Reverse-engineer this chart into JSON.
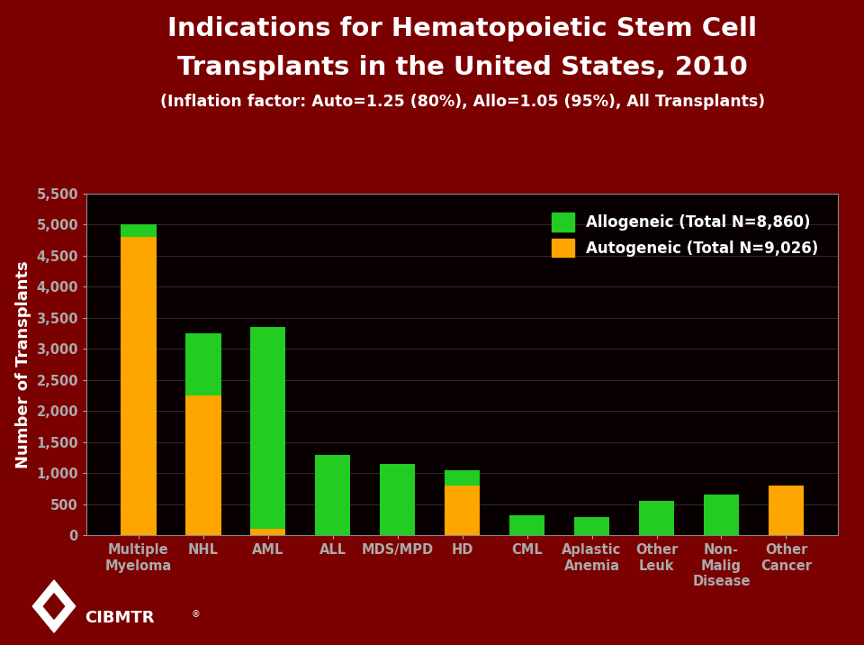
{
  "title_line1": "Indications for Hematopoietic Stem Cell",
  "title_line2": "Transplants in the United States, 2010",
  "subtitle": "(Inflation factor: Auto=1.25 (80%), Allo=1.05 (95%), All Transplants)",
  "ylabel": "Number of Transplants",
  "categories": [
    "Multiple\nMyeloma",
    "NHL",
    "AML",
    "ALL",
    "MDS/MPD",
    "HD",
    "CML",
    "Aplastic\nAnemia",
    "Other\nLeuk",
    "Non-\nMalig\nDisease",
    "Other\nCancer"
  ],
  "allo_values": [
    200,
    1000,
    3250,
    1300,
    1150,
    250,
    325,
    300,
    550,
    650,
    0
  ],
  "auto_values": [
    4800,
    2250,
    100,
    0,
    0,
    800,
    0,
    0,
    0,
    0,
    800
  ],
  "allo_color": "#22CC22",
  "auto_color": "#FFA500",
  "legend_allo": "Allogeneic (Total N=8,860)",
  "legend_auto": "Autogeneic (Total N=9,026)",
  "ylim": [
    0,
    5500
  ],
  "yticks": [
    0,
    500,
    1000,
    1500,
    2000,
    2500,
    3000,
    3500,
    4000,
    4500,
    5000,
    5500
  ],
  "background_outer": "#7B0000",
  "background_plot": "#080000",
  "title_color": "#FFFFFF",
  "tick_label_color": "#FFFFFF",
  "axis_label_color": "#FFFFFF",
  "grid_color": "#333333",
  "title_fontsize": 21,
  "subtitle_fontsize": 12.5,
  "ylabel_fontsize": 13,
  "tick_fontsize": 10.5,
  "legend_fontsize": 12,
  "bar_width": 0.55
}
